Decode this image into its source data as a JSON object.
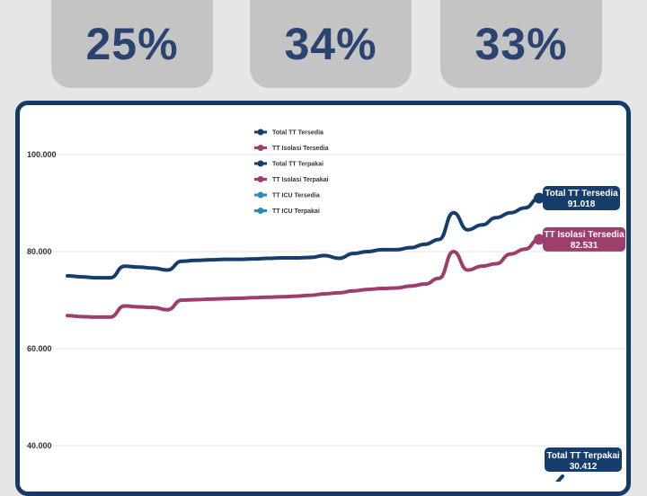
{
  "stats": [
    {
      "value": "25%"
    },
    {
      "value": "34%"
    },
    {
      "value": "33%"
    }
  ],
  "colors": {
    "navy": "#173e6b",
    "magenta": "#9c3f6c",
    "teal": "#2b8cba",
    "stat_bg": "#c4c4c4",
    "stat_text": "#2b4371",
    "frame": "#153a66"
  },
  "chart_data": {
    "type": "line",
    "ylim": [
      30000,
      105000
    ],
    "grid": true,
    "legend": "top-center",
    "yticks": [
      {
        "value": 40000,
        "label": "40.000"
      },
      {
        "value": 60000,
        "label": "60.000"
      },
      {
        "value": 80000,
        "label": "80.000"
      },
      {
        "value": 100000,
        "label": "100.000"
      }
    ],
    "legend_entries": [
      {
        "name": "Total TT Tersedia",
        "color": "#173e6b"
      },
      {
        "name": "TT Isolasi Tersedia",
        "color": "#9c3f6c"
      },
      {
        "name": "Total TT Terpakai",
        "color": "#173e6b"
      },
      {
        "name": "TT Isolasi Terpakai",
        "color": "#9c3f6c"
      },
      {
        "name": "TT ICU Tersedia",
        "color": "#2b8cba"
      },
      {
        "name": "TT ICU Terpakai",
        "color": "#2b8cba"
      }
    ],
    "series": [
      {
        "name": "Total TT Tersedia",
        "color": "#173e6b",
        "end_label": "91.018",
        "values": [
          75000,
          74800,
          74600,
          74600,
          77000,
          76800,
          76600,
          76200,
          78000,
          78200,
          78300,
          78400,
          78400,
          78500,
          78600,
          78700,
          78700,
          78800,
          79200,
          78600,
          79600,
          80000,
          80400,
          80400,
          80800,
          81500,
          82500,
          88000,
          84500,
          85500,
          87000,
          88000,
          89000,
          91018
        ]
      },
      {
        "name": "TT Isolasi Tersedia",
        "color": "#9c3f6c",
        "end_label": "82.531",
        "values": [
          66800,
          66600,
          66500,
          66500,
          68800,
          68600,
          68500,
          68000,
          70000,
          70100,
          70200,
          70300,
          70400,
          70500,
          70600,
          70700,
          70800,
          71000,
          71300,
          71500,
          71900,
          72200,
          72400,
          72500,
          72900,
          73300,
          74500,
          80000,
          76200,
          77000,
          77500,
          79500,
          80500,
          82531
        ]
      },
      {
        "name": "Total TT Terpakai",
        "color": "#173e6b",
        "end_label": "30.412",
        "values": [
          30412
        ]
      }
    ]
  }
}
